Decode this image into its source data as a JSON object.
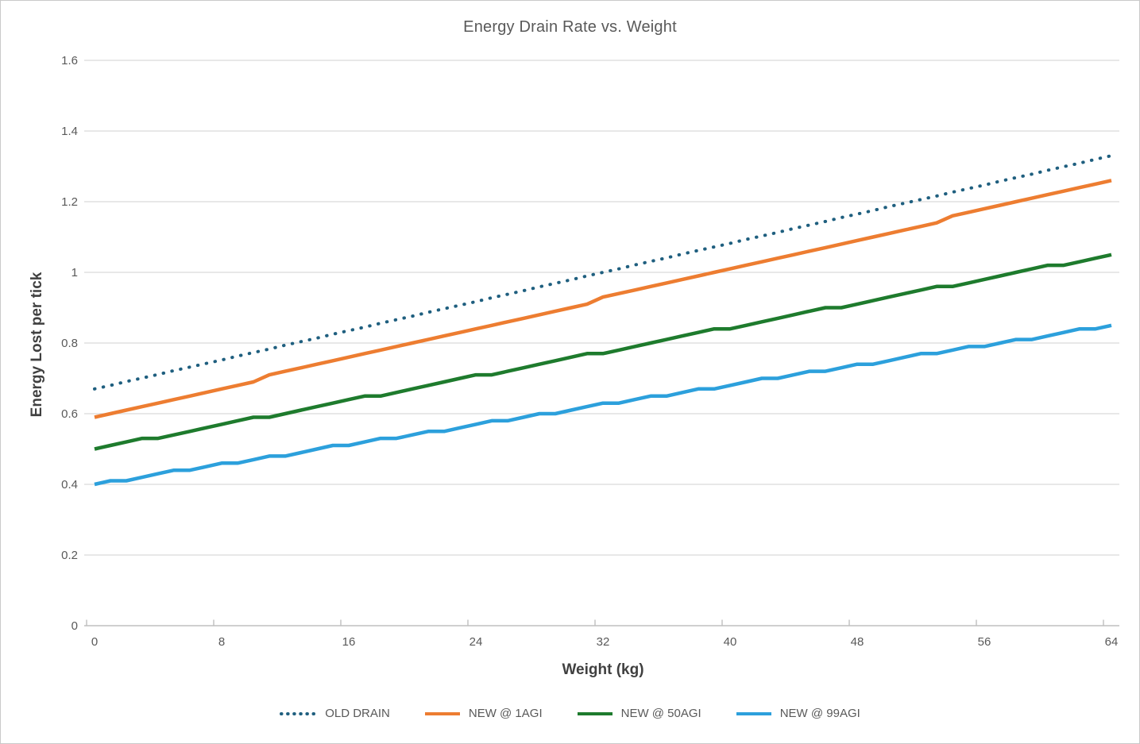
{
  "page": {
    "background": "#FFFFFF",
    "border_color": "#C9C9C9"
  },
  "chart_data": {
    "type": "line",
    "title": "Energy Drain Rate vs. Weight",
    "xlabel": "Weight (kg)",
    "ylabel": "Energy Lost per tick",
    "xlim": [
      0,
      64
    ],
    "ylim": [
      0,
      1.6
    ],
    "x_ticks": [
      0,
      8,
      16,
      24,
      32,
      40,
      48,
      56,
      64
    ],
    "y_ticks": [
      "0",
      "0.2",
      "0.4",
      "0.6",
      "0.8",
      "1",
      "1.2",
      "1.4",
      "1.6"
    ],
    "grid": "horizontal-only",
    "legend_position": "bottom",
    "colors": {
      "gridline": "#D9D9D9",
      "axis_line": "#BFBFBF",
      "tick_label": "#595959",
      "axis_title": "#404040",
      "title": "#595959",
      "legend_text": "#595959"
    },
    "x": [
      0,
      1,
      2,
      3,
      4,
      5,
      6,
      7,
      8,
      9,
      10,
      11,
      12,
      13,
      14,
      15,
      16,
      17,
      18,
      19,
      20,
      21,
      22,
      23,
      24,
      25,
      26,
      27,
      28,
      29,
      30,
      31,
      32,
      33,
      34,
      35,
      36,
      37,
      38,
      39,
      40,
      41,
      42,
      43,
      44,
      45,
      46,
      47,
      48,
      49,
      50,
      51,
      52,
      53,
      54,
      55,
      56,
      57,
      58,
      59,
      60,
      61,
      62,
      63,
      64
    ],
    "series": [
      {
        "name": "OLD DRAIN",
        "color": "#1F5F7F",
        "style": "dotted",
        "values": [
          0.67,
          0.68,
          0.691,
          0.701,
          0.711,
          0.722,
          0.732,
          0.742,
          0.752,
          0.763,
          0.773,
          0.783,
          0.794,
          0.804,
          0.814,
          0.825,
          0.835,
          0.845,
          0.856,
          0.866,
          0.876,
          0.887,
          0.897,
          0.907,
          0.917,
          0.928,
          0.938,
          0.948,
          0.959,
          0.969,
          0.979,
          0.99,
          1.0,
          1.01,
          1.021,
          1.031,
          1.041,
          1.052,
          1.062,
          1.072,
          1.082,
          1.093,
          1.103,
          1.113,
          1.124,
          1.134,
          1.144,
          1.155,
          1.165,
          1.175,
          1.186,
          1.196,
          1.206,
          1.216,
          1.227,
          1.237,
          1.247,
          1.258,
          1.268,
          1.278,
          1.289,
          1.299,
          1.309,
          1.32,
          1.33
        ]
      },
      {
        "name": "NEW @ 1AGI",
        "color": "#ED7D31",
        "style": "solid",
        "values": [
          0.59,
          0.6,
          0.61,
          0.62,
          0.63,
          0.64,
          0.65,
          0.66,
          0.67,
          0.68,
          0.69,
          0.71,
          0.72,
          0.73,
          0.74,
          0.75,
          0.76,
          0.77,
          0.78,
          0.79,
          0.8,
          0.81,
          0.82,
          0.83,
          0.84,
          0.85,
          0.86,
          0.87,
          0.88,
          0.89,
          0.9,
          0.91,
          0.93,
          0.94,
          0.95,
          0.96,
          0.97,
          0.98,
          0.99,
          1.0,
          1.01,
          1.02,
          1.03,
          1.04,
          1.05,
          1.06,
          1.07,
          1.08,
          1.09,
          1.1,
          1.11,
          1.12,
          1.13,
          1.14,
          1.16,
          1.17,
          1.18,
          1.19,
          1.2,
          1.21,
          1.22,
          1.23,
          1.24,
          1.25,
          1.26
        ]
      },
      {
        "name": "NEW @ 50AGI",
        "color": "#1E7B2D",
        "style": "solid",
        "values": [
          0.5,
          0.51,
          0.52,
          0.53,
          0.53,
          0.54,
          0.55,
          0.56,
          0.57,
          0.58,
          0.59,
          0.59,
          0.6,
          0.61,
          0.62,
          0.63,
          0.64,
          0.65,
          0.65,
          0.66,
          0.67,
          0.68,
          0.69,
          0.7,
          0.71,
          0.71,
          0.72,
          0.73,
          0.74,
          0.75,
          0.76,
          0.77,
          0.77,
          0.78,
          0.79,
          0.8,
          0.81,
          0.82,
          0.83,
          0.84,
          0.84,
          0.85,
          0.86,
          0.87,
          0.88,
          0.89,
          0.9,
          0.9,
          0.91,
          0.92,
          0.93,
          0.94,
          0.95,
          0.96,
          0.96,
          0.97,
          0.98,
          0.99,
          1.0,
          1.01,
          1.02,
          1.02,
          1.03,
          1.04,
          1.05
        ]
      },
      {
        "name": "NEW @ 99AGI",
        "color": "#2CA0DC",
        "style": "solid",
        "values": [
          0.4,
          0.41,
          0.41,
          0.42,
          0.43,
          0.44,
          0.44,
          0.45,
          0.46,
          0.46,
          0.47,
          0.48,
          0.48,
          0.49,
          0.5,
          0.51,
          0.51,
          0.52,
          0.53,
          0.53,
          0.54,
          0.55,
          0.55,
          0.56,
          0.57,
          0.58,
          0.58,
          0.59,
          0.6,
          0.6,
          0.61,
          0.62,
          0.63,
          0.63,
          0.64,
          0.65,
          0.65,
          0.66,
          0.67,
          0.67,
          0.68,
          0.69,
          0.7,
          0.7,
          0.71,
          0.72,
          0.72,
          0.73,
          0.74,
          0.74,
          0.75,
          0.76,
          0.77,
          0.77,
          0.78,
          0.79,
          0.79,
          0.8,
          0.81,
          0.81,
          0.82,
          0.83,
          0.84,
          0.84,
          0.85
        ]
      }
    ]
  }
}
